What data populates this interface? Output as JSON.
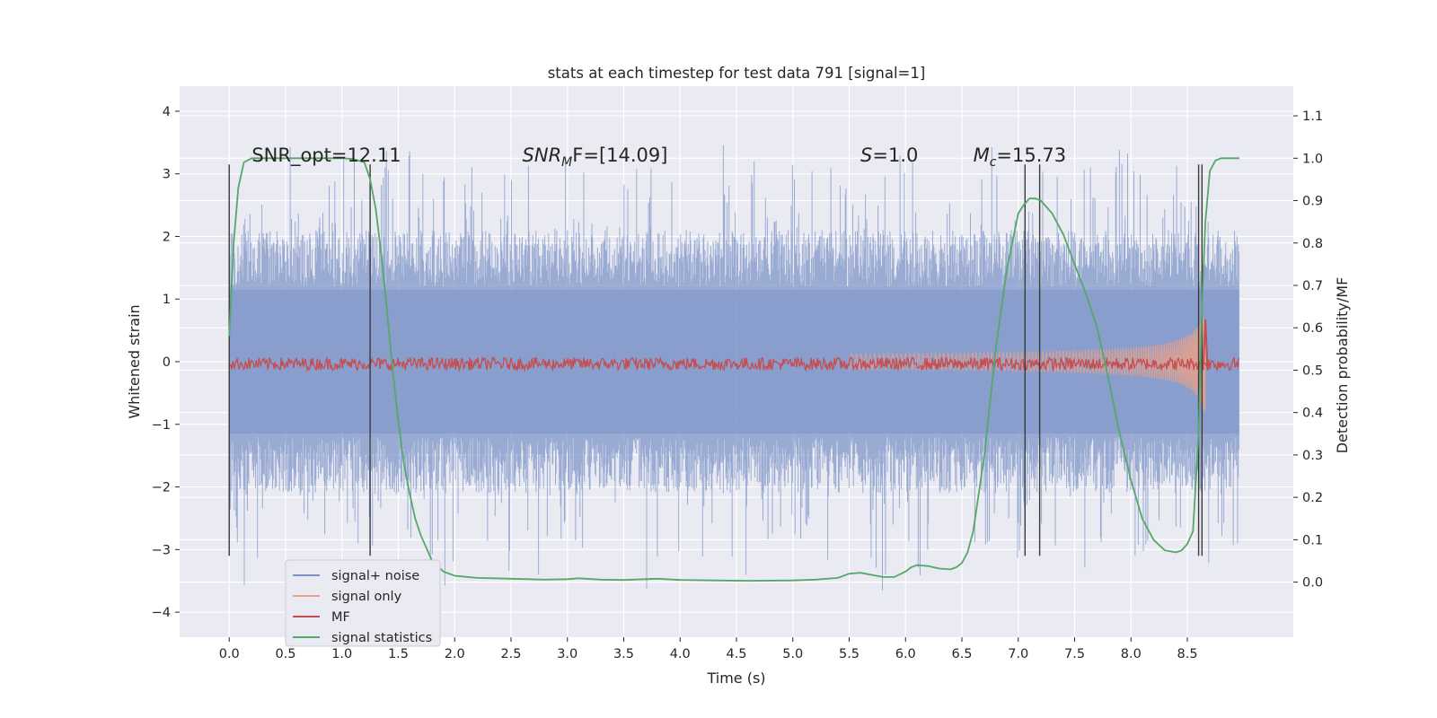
{
  "chart_data": {
    "type": "line",
    "title": "stats at each timestep for test data 791 [signal=1]",
    "xlabel": "Time (s)",
    "ylabel": "Whitened strain",
    "y2label": "Detection probability/MF",
    "xlim": [
      -0.44,
      9.44
    ],
    "ylim": [
      -4.4,
      4.4
    ],
    "y2lim": [
      -0.13,
      1.17
    ],
    "xticks": [
      "0.0",
      "0.5",
      "1.0",
      "1.5",
      "2.0",
      "2.5",
      "3.0",
      "3.5",
      "4.0",
      "4.5",
      "5.0",
      "5.5",
      "6.0",
      "6.5",
      "7.0",
      "7.5",
      "8.0",
      "8.5"
    ],
    "yticks": [
      "4",
      "3",
      "2",
      "1",
      "0",
      "−1",
      "−2",
      "−3",
      "−4"
    ],
    "y2ticks": [
      "1.1",
      "1.0",
      "0.9",
      "0.8",
      "0.7",
      "0.6",
      "0.5",
      "0.4",
      "0.3",
      "0.2",
      "0.1",
      "0.0"
    ],
    "grid": true,
    "legend_position": "lower-left",
    "legend": [
      "signal+ noise",
      "signal only",
      "MF",
      "signal statistics"
    ],
    "colors": {
      "signal_noise": "#7b93c6",
      "signal_only": "#e8a08a",
      "mf": "#c44e52",
      "signal_statistics": "#55a868",
      "markers": "#3a3a3a",
      "plot_bg": "#eaeaf2",
      "grid": "#ffffff"
    },
    "annotations": [
      {
        "text": "SNR_opt=12.11",
        "x": 0.2
      },
      {
        "text": "SNR",
        "sub": "M",
        "rest": "F=[14.09]",
        "x": 2.6
      },
      {
        "text": "S",
        "rest": "=1.0",
        "x": 5.6
      },
      {
        "text": "M",
        "sub": "c",
        "rest": "=15.73",
        "x": 6.6
      }
    ],
    "vertical_markers_s": [
      0.0,
      1.25,
      7.06,
      7.19,
      8.6,
      8.63
    ],
    "series": [
      {
        "name": "signal statistics",
        "axis": "right",
        "x": [
          0.0,
          0.04,
          0.08,
          0.13,
          0.2,
          0.3,
          0.5,
          0.8,
          1.0,
          1.1,
          1.2,
          1.25,
          1.3,
          1.35,
          1.4,
          1.45,
          1.5,
          1.55,
          1.6,
          1.65,
          1.7,
          1.8,
          1.9,
          2.0,
          2.2,
          2.5,
          2.8,
          3.0,
          3.1,
          3.3,
          3.5,
          3.8,
          4.0,
          4.3,
          4.6,
          5.0,
          5.2,
          5.4,
          5.5,
          5.6,
          5.8,
          5.9,
          6.0,
          6.05,
          6.1,
          6.2,
          6.3,
          6.4,
          6.45,
          6.5,
          6.55,
          6.6,
          6.7,
          6.8,
          6.9,
          7.0,
          7.05,
          7.1,
          7.15,
          7.2,
          7.3,
          7.4,
          7.5,
          7.6,
          7.7,
          7.8,
          7.9,
          8.0,
          8.1,
          8.2,
          8.3,
          8.4,
          8.45,
          8.5,
          8.55,
          8.6,
          8.63,
          8.66,
          8.7,
          8.75,
          8.8,
          8.9,
          8.96
        ],
        "y": [
          0.58,
          0.8,
          0.93,
          0.99,
          1.0,
          1.0,
          1.0,
          1.0,
          1.0,
          0.998,
          0.99,
          0.95,
          0.88,
          0.77,
          0.64,
          0.5,
          0.38,
          0.28,
          0.21,
          0.15,
          0.11,
          0.05,
          0.025,
          0.015,
          0.01,
          0.008,
          0.006,
          0.007,
          0.009,
          0.006,
          0.005,
          0.008,
          0.005,
          0.004,
          0.003,
          0.004,
          0.006,
          0.01,
          0.02,
          0.022,
          0.012,
          0.012,
          0.025,
          0.035,
          0.04,
          0.038,
          0.032,
          0.03,
          0.035,
          0.045,
          0.07,
          0.12,
          0.3,
          0.55,
          0.74,
          0.87,
          0.89,
          0.905,
          0.905,
          0.9,
          0.87,
          0.82,
          0.75,
          0.68,
          0.6,
          0.48,
          0.35,
          0.24,
          0.15,
          0.1,
          0.075,
          0.07,
          0.075,
          0.09,
          0.12,
          0.35,
          0.65,
          0.85,
          0.97,
          0.995,
          1.0,
          1.0,
          1.0
        ]
      },
      {
        "name": "signal+ noise",
        "axis": "left",
        "description_range": [
          -4.0,
          4.0
        ],
        "x_range": [
          0.0,
          8.96
        ]
      },
      {
        "name": "MF",
        "axis": "right",
        "baseline": 0.5,
        "x_range": [
          0.0,
          8.96
        ],
        "peak_x": 8.66,
        "peak_value": 0.62
      },
      {
        "name": "signal only",
        "axis": "left",
        "x_range": [
          5.5,
          8.66
        ],
        "peak_amplitude": 1.0
      }
    ]
  }
}
